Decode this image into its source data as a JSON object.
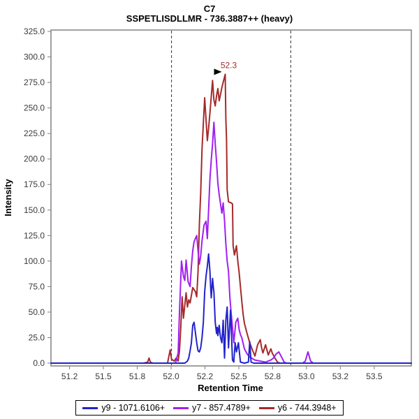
{
  "chart_data": {
    "type": "line",
    "title": "C7",
    "subtitle": "SSPETLISDLLMR - 736.3887++ (heavy)",
    "xlabel": "Retention Time",
    "ylabel": "Intensity",
    "grid": false,
    "legend_position": "bottom-center",
    "x_axis": {
      "min": 51.06,
      "max": 53.78,
      "tick_first": 51.2,
      "tick_last": 53.5,
      "tick_labels": [
        "51.2",
        "51.5",
        "51.8",
        "52.0",
        "52.2",
        "52.5",
        "52.8",
        "53.0",
        "53.2",
        "53.5"
      ]
    },
    "y_axis": {
      "min": 0,
      "max": 325,
      "step": 25,
      "decimals": 1
    },
    "peak_boundaries": [
      51.97,
      52.87
    ],
    "annotation": {
      "text": "52.3",
      "rt": 52.375,
      "intensity": 283,
      "color": "#a52a2a"
    },
    "series": [
      {
        "id": "y9",
        "name": "y9 - 1071.6106+",
        "color": "#2222cc",
        "points": [
          [
            51.06,
            0
          ],
          [
            52.07,
            0
          ],
          [
            52.09,
            2
          ],
          [
            52.1,
            5
          ],
          [
            52.11,
            12
          ],
          [
            52.12,
            20
          ],
          [
            52.13,
            37
          ],
          [
            52.14,
            40
          ],
          [
            52.15,
            30
          ],
          [
            52.16,
            20
          ],
          [
            52.17,
            12
          ],
          [
            52.18,
            11
          ],
          [
            52.19,
            15
          ],
          [
            52.2,
            25
          ],
          [
            52.21,
            40
          ],
          [
            52.22,
            70
          ],
          [
            52.23,
            85
          ],
          [
            52.24,
            95
          ],
          [
            52.25,
            107
          ],
          [
            52.26,
            90
          ],
          [
            52.265,
            75
          ],
          [
            52.27,
            64
          ],
          [
            52.28,
            83
          ],
          [
            52.285,
            75
          ],
          [
            52.29,
            70
          ],
          [
            52.3,
            40
          ],
          [
            52.31,
            29
          ],
          [
            52.315,
            35
          ],
          [
            52.32,
            27
          ],
          [
            52.33,
            37
          ],
          [
            52.335,
            30
          ],
          [
            52.34,
            25
          ],
          [
            52.35,
            20
          ],
          [
            52.36,
            42
          ],
          [
            52.37,
            5
          ],
          [
            52.38,
            42
          ],
          [
            52.39,
            55
          ],
          [
            52.4,
            15
          ],
          [
            52.415,
            52
          ],
          [
            52.43,
            3
          ],
          [
            52.44,
            1
          ],
          [
            52.45,
            20
          ],
          [
            52.46,
            11
          ],
          [
            52.475,
            20
          ],
          [
            52.49,
            1
          ],
          [
            52.52,
            0
          ],
          [
            52.55,
            1
          ],
          [
            52.56,
            21
          ],
          [
            52.57,
            1
          ],
          [
            52.59,
            0
          ],
          [
            53.78,
            0
          ]
        ]
      },
      {
        "id": "y7",
        "name": "y7 - 857.4789+",
        "color": "#a020f0",
        "points": [
          [
            51.06,
            0
          ],
          [
            52.0,
            0
          ],
          [
            52.02,
            10
          ],
          [
            52.03,
            50
          ],
          [
            52.045,
            100
          ],
          [
            52.06,
            85
          ],
          [
            52.07,
            81
          ],
          [
            52.08,
            101
          ],
          [
            52.095,
            80
          ],
          [
            52.11,
            75
          ],
          [
            52.12,
            95
          ],
          [
            52.13,
            110
          ],
          [
            52.14,
            119
          ],
          [
            52.15,
            122
          ],
          [
            52.16,
            125
          ],
          [
            52.17,
            110
          ],
          [
            52.18,
            97
          ],
          [
            52.19,
            105
          ],
          [
            52.2,
            120
          ],
          [
            52.215,
            135
          ],
          [
            52.23,
            139
          ],
          [
            52.24,
            122
          ],
          [
            52.25,
            150
          ],
          [
            52.26,
            180
          ],
          [
            52.27,
            199
          ],
          [
            52.28,
            215
          ],
          [
            52.29,
            236
          ],
          [
            52.3,
            215
          ],
          [
            52.31,
            197
          ],
          [
            52.32,
            176
          ],
          [
            52.33,
            165
          ],
          [
            52.34,
            156
          ],
          [
            52.35,
            147
          ],
          [
            52.36,
            157
          ],
          [
            52.37,
            140
          ],
          [
            52.38,
            117
          ],
          [
            52.39,
            100
          ],
          [
            52.4,
            90
          ],
          [
            52.41,
            65
          ],
          [
            52.42,
            49
          ],
          [
            52.43,
            35
          ],
          [
            52.44,
            20
          ],
          [
            52.455,
            40
          ],
          [
            52.47,
            44
          ],
          [
            52.48,
            33
          ],
          [
            52.49,
            28
          ],
          [
            52.5,
            25
          ],
          [
            52.52,
            14
          ],
          [
            52.54,
            9
          ],
          [
            52.56,
            6
          ],
          [
            52.6,
            3
          ],
          [
            52.64,
            2
          ],
          [
            52.68,
            1
          ],
          [
            52.72,
            3
          ],
          [
            52.74,
            5
          ],
          [
            52.76,
            9
          ],
          [
            52.78,
            11
          ],
          [
            52.8,
            6
          ],
          [
            52.82,
            1
          ],
          [
            52.84,
            0
          ],
          [
            52.96,
            0
          ],
          [
            52.98,
            2
          ],
          [
            53.0,
            11
          ],
          [
            53.02,
            2
          ],
          [
            53.04,
            0
          ],
          [
            53.78,
            0
          ]
        ]
      },
      {
        "id": "y6",
        "name": "y6 - 744.3948+",
        "color": "#a52a2a",
        "points": [
          [
            51.06,
            0
          ],
          [
            51.76,
            0
          ],
          [
            51.79,
            1
          ],
          [
            51.8,
            5
          ],
          [
            51.81,
            1
          ],
          [
            51.83,
            0
          ],
          [
            51.94,
            0
          ],
          [
            51.96,
            13
          ],
          [
            51.97,
            4
          ],
          [
            51.99,
            2
          ],
          [
            52.005,
            5
          ],
          [
            52.02,
            2
          ],
          [
            52.03,
            12
          ],
          [
            52.04,
            35
          ],
          [
            52.05,
            65
          ],
          [
            52.06,
            44
          ],
          [
            52.08,
            69
          ],
          [
            52.09,
            55
          ],
          [
            52.1,
            62
          ],
          [
            52.11,
            59
          ],
          [
            52.13,
            74
          ],
          [
            52.15,
            70
          ],
          [
            52.16,
            65
          ],
          [
            52.17,
            90
          ],
          [
            52.18,
            136
          ],
          [
            52.19,
            167
          ],
          [
            52.2,
            210
          ],
          [
            52.22,
            260
          ],
          [
            52.24,
            218
          ],
          [
            52.25,
            230
          ],
          [
            52.26,
            245
          ],
          [
            52.28,
            277
          ],
          [
            52.29,
            258
          ],
          [
            52.3,
            252
          ],
          [
            52.31,
            262
          ],
          [
            52.32,
            269
          ],
          [
            52.33,
            257
          ],
          [
            52.35,
            270
          ],
          [
            52.375,
            283
          ],
          [
            52.38,
            240
          ],
          [
            52.385,
            219
          ],
          [
            52.39,
            170
          ],
          [
            52.4,
            158
          ],
          [
            52.42,
            157
          ],
          [
            52.43,
            156
          ],
          [
            52.435,
            115
          ],
          [
            52.445,
            106
          ],
          [
            52.46,
            115
          ],
          [
            52.47,
            100
          ],
          [
            52.48,
            89
          ],
          [
            52.49,
            75
          ],
          [
            52.5,
            61
          ],
          [
            52.51,
            48
          ],
          [
            52.52,
            39
          ],
          [
            52.54,
            29
          ],
          [
            52.56,
            20
          ],
          [
            52.58,
            13
          ],
          [
            52.6,
            7
          ],
          [
            52.62,
            18
          ],
          [
            52.64,
            23
          ],
          [
            52.65,
            15
          ],
          [
            52.66,
            10
          ],
          [
            52.68,
            18
          ],
          [
            52.7,
            8
          ],
          [
            52.72,
            14
          ],
          [
            52.73,
            10
          ],
          [
            52.75,
            5
          ],
          [
            52.77,
            1
          ],
          [
            52.79,
            0
          ],
          [
            53.78,
            0
          ]
        ]
      }
    ]
  }
}
